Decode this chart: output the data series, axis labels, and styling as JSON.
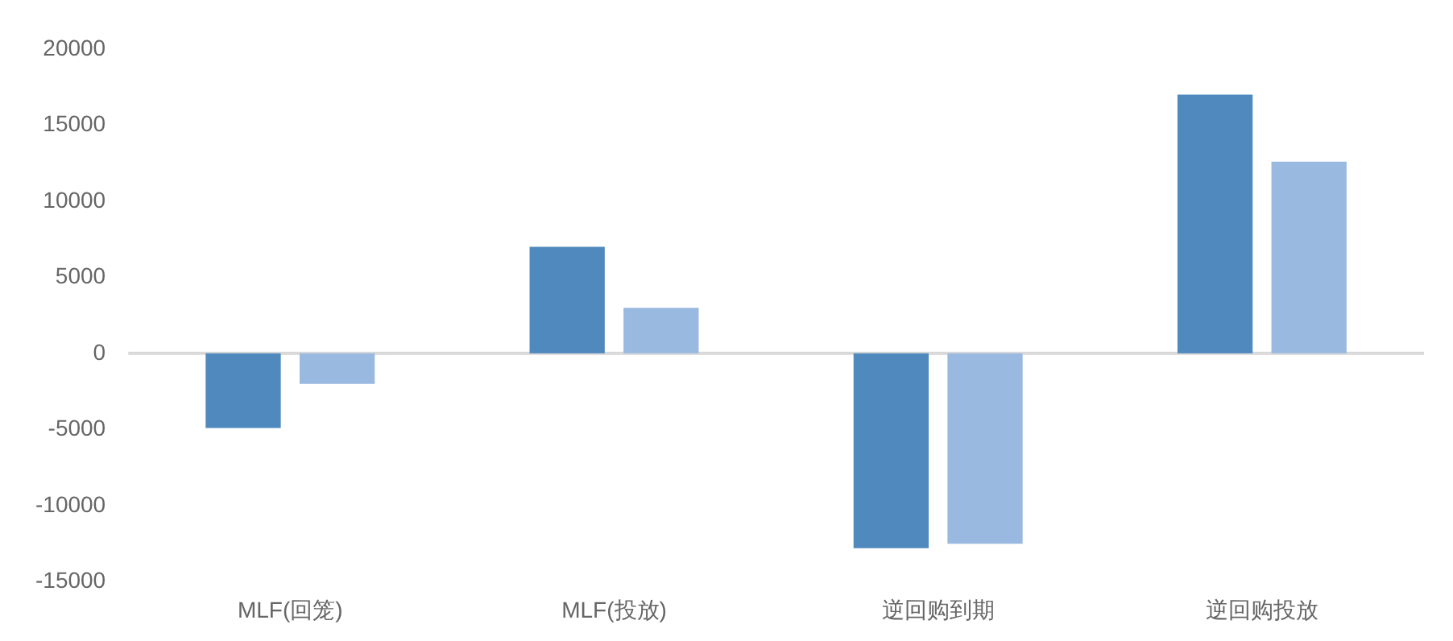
{
  "chart_data": {
    "type": "bar",
    "categories": [
      "MLF(回笼)",
      "MLF(投放)",
      "逆回购到期",
      "逆回购投放"
    ],
    "series": [
      {
        "color": "#4f89bd",
        "values": [
          -4900,
          7000,
          -12800,
          17000
        ]
      },
      {
        "color": "#9ab9e0",
        "values": [
          -2000,
          3000,
          -12500,
          12600
        ]
      }
    ],
    "ylim": [
      -15000,
      20000
    ],
    "yticks": [
      -15000,
      -10000,
      -5000,
      0,
      5000,
      10000,
      15000,
      20000
    ],
    "ref_lines": [
      {
        "axis": "y",
        "value": 0,
        "color": "#d9d9d9"
      }
    ],
    "grid": false,
    "legend": false
  }
}
